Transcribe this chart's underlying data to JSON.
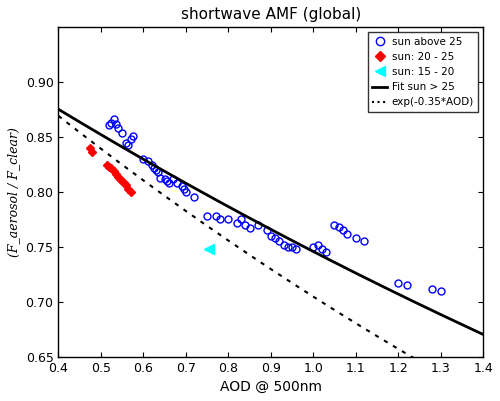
{
  "title": "shortwave AMF (global)",
  "xlabel": "AOD @ 500nm",
  "ylabel": "(F_aerosol / F_clear)",
  "xlim": [
    0.4,
    1.4
  ],
  "ylim": [
    0.65,
    0.95
  ],
  "xticks": [
    0.4,
    0.5,
    0.6,
    0.7,
    0.8,
    0.9,
    1.0,
    1.1,
    1.2,
    1.3,
    1.4
  ],
  "yticks": [
    0.65,
    0.7,
    0.75,
    0.8,
    0.85,
    0.9
  ],
  "blue_x": [
    0.52,
    0.525,
    0.53,
    0.535,
    0.54,
    0.55,
    0.56,
    0.565,
    0.57,
    0.575,
    0.6,
    0.61,
    0.62,
    0.625,
    0.63,
    0.635,
    0.64,
    0.65,
    0.655,
    0.66,
    0.67,
    0.68,
    0.69,
    0.695,
    0.7,
    0.72,
    0.75,
    0.77,
    0.78,
    0.8,
    0.82,
    0.83,
    0.84,
    0.85,
    0.87,
    0.89,
    0.9,
    0.91,
    0.92,
    0.93,
    0.94,
    0.95,
    0.96,
    1.0,
    1.01,
    1.02,
    1.03,
    1.05,
    1.06,
    1.07,
    1.08,
    1.1,
    1.12,
    1.2,
    1.22,
    1.28,
    1.3
  ],
  "blue_y": [
    0.861,
    0.863,
    0.866,
    0.862,
    0.858,
    0.854,
    0.845,
    0.843,
    0.848,
    0.851,
    0.83,
    0.828,
    0.825,
    0.822,
    0.82,
    0.818,
    0.813,
    0.812,
    0.81,
    0.808,
    0.812,
    0.808,
    0.805,
    0.803,
    0.8,
    0.795,
    0.778,
    0.778,
    0.775,
    0.775,
    0.772,
    0.775,
    0.77,
    0.767,
    0.77,
    0.765,
    0.76,
    0.758,
    0.755,
    0.752,
    0.75,
    0.75,
    0.748,
    0.75,
    0.752,
    0.748,
    0.745,
    0.77,
    0.768,
    0.765,
    0.762,
    0.758,
    0.755,
    0.717,
    0.715,
    0.712,
    0.71
  ],
  "red_x": [
    0.475,
    0.48,
    0.515,
    0.52,
    0.525,
    0.53,
    0.535,
    0.54,
    0.545,
    0.55,
    0.555,
    0.56,
    0.565,
    0.57
  ],
  "red_y": [
    0.84,
    0.836,
    0.825,
    0.823,
    0.822,
    0.819,
    0.816,
    0.814,
    0.812,
    0.81,
    0.808,
    0.806,
    0.803,
    0.8
  ],
  "cyan_x": [
    0.755
  ],
  "cyan_y": [
    0.748
  ],
  "fit_a": 0.974,
  "fit_b": -0.267,
  "exp_coeff": -0.35,
  "legend_labels": [
    "sun above 25",
    "sun: 20 - 25",
    "sun: 15 - 20",
    "Fit sun > 25",
    "exp(-0.35*AOD)"
  ],
  "background_color": "#ffffff",
  "figsize": [
    5.0,
    4.01
  ],
  "dpi": 100
}
